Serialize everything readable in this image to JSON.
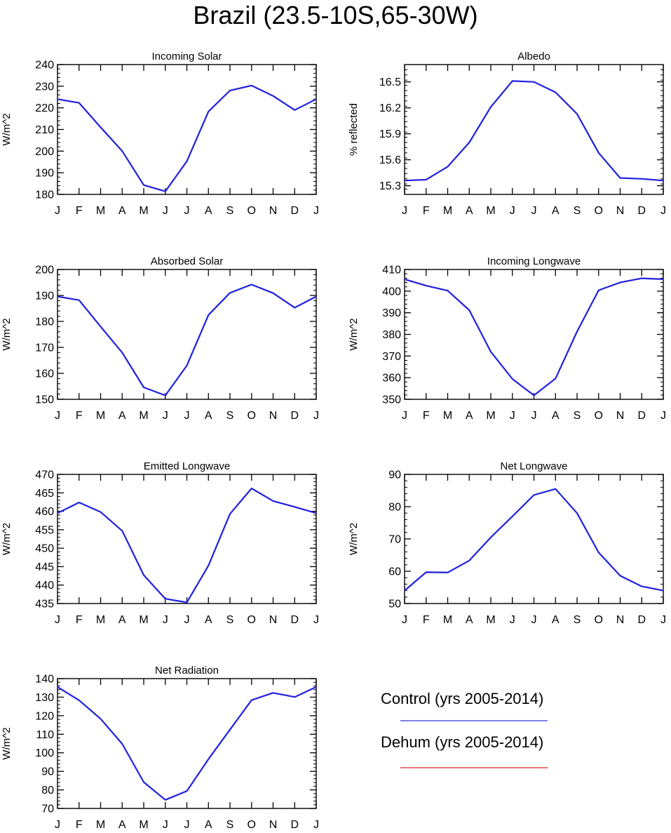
{
  "title": "Brazil (23.5-10S,65-30W)",
  "colors": {
    "control": "#2020e0",
    "dehum": "#e02020",
    "axis": "#000000"
  },
  "legend": {
    "entries": [
      {
        "label": "Control (yrs 2005-2014)",
        "color": "#3333dd"
      },
      {
        "label": "Dehum (yrs 2005-2014)",
        "color": "#dd2222"
      }
    ]
  },
  "chart_data": [
    {
      "type": "line",
      "title": "Incoming Solar",
      "ylabel": "W/m^2",
      "categories": [
        "J",
        "F",
        "M",
        "A",
        "M",
        "J",
        "J",
        "A",
        "S",
        "O",
        "N",
        "D",
        "J"
      ],
      "ylim": [
        180,
        240
      ],
      "yticks": [
        180,
        190,
        200,
        210,
        220,
        230,
        240
      ],
      "series": [
        {
          "values": [
            224,
            222.3,
            211,
            200,
            184.3,
            181.4,
            195.3,
            218.3,
            228,
            230.3,
            225.5,
            219,
            224
          ]
        }
      ]
    },
    {
      "type": "line",
      "title": "Albedo",
      "ylabel": "% reflected",
      "categories": [
        "J",
        "F",
        "M",
        "A",
        "M",
        "J",
        "J",
        "A",
        "S",
        "O",
        "N",
        "D",
        "J"
      ],
      "ylim": [
        15.2,
        16.7
      ],
      "yticks": [
        15.3,
        15.6,
        15.9,
        16.2,
        16.5
      ],
      "series": [
        {
          "values": [
            15.36,
            15.37,
            15.52,
            15.8,
            16.21,
            16.51,
            16.5,
            16.38,
            16.13,
            15.68,
            15.39,
            15.38,
            15.36
          ]
        }
      ]
    },
    {
      "type": "line",
      "title": "Absorbed Solar",
      "ylabel": "W/m^2",
      "categories": [
        "J",
        "F",
        "M",
        "A",
        "M",
        "J",
        "J",
        "A",
        "S",
        "O",
        "N",
        "D",
        "J"
      ],
      "ylim": [
        150,
        200
      ],
      "yticks": [
        150,
        160,
        170,
        180,
        190,
        200
      ],
      "series": [
        {
          "values": [
            189.6,
            188.2,
            178,
            168,
            154.6,
            151.5,
            163,
            182.5,
            191,
            194.2,
            190.9,
            185.3,
            189.6
          ]
        }
      ]
    },
    {
      "type": "line",
      "title": "Incoming Longwave",
      "ylabel": "W/m^2",
      "categories": [
        "J",
        "F",
        "M",
        "A",
        "M",
        "J",
        "J",
        "A",
        "S",
        "O",
        "N",
        "D",
        "J"
      ],
      "ylim": [
        350,
        410
      ],
      "yticks": [
        350,
        360,
        370,
        380,
        390,
        400,
        410
      ],
      "series": [
        {
          "values": [
            405.5,
            402.5,
            400.2,
            391.2,
            372,
            359.4,
            351.8,
            359.6,
            381.3,
            400.4,
            404,
            405.9,
            405.5
          ]
        }
      ]
    },
    {
      "type": "line",
      "title": "Emitted Longwave",
      "ylabel": "W/m^2",
      "categories": [
        "J",
        "F",
        "M",
        "A",
        "M",
        "J",
        "J",
        "A",
        "S",
        "O",
        "N",
        "D",
        "J"
      ],
      "ylim": [
        435,
        470
      ],
      "yticks": [
        435,
        440,
        445,
        450,
        455,
        460,
        465,
        470
      ],
      "series": [
        {
          "values": [
            459.5,
            462.4,
            459.8,
            454.7,
            442.7,
            436.3,
            435.3,
            445.3,
            459.3,
            466.2,
            462.8,
            461.2,
            459.5
          ]
        }
      ]
    },
    {
      "type": "line",
      "title": "Net Longwave",
      "ylabel": "W/m^2",
      "categories": [
        "J",
        "F",
        "M",
        "A",
        "M",
        "J",
        "J",
        "A",
        "S",
        "O",
        "N",
        "D",
        "J"
      ],
      "ylim": [
        50,
        90
      ],
      "yticks": [
        50,
        60,
        70,
        80,
        90
      ],
      "series": [
        {
          "values": [
            54,
            59.7,
            59.6,
            63.3,
            70.5,
            77,
            83.6,
            85.5,
            78,
            65.8,
            58.6,
            55.3,
            54
          ]
        }
      ]
    },
    {
      "type": "line",
      "title": "Net Radiation",
      "ylabel": "W/m^2",
      "categories": [
        "J",
        "F",
        "M",
        "A",
        "M",
        "J",
        "J",
        "A",
        "S",
        "O",
        "N",
        "D",
        "J"
      ],
      "ylim": [
        70,
        140
      ],
      "yticks": [
        70,
        80,
        90,
        100,
        110,
        120,
        130,
        140
      ],
      "series": [
        {
          "values": [
            135.5,
            128.3,
            118.3,
            104.8,
            84.2,
            74.6,
            79.4,
            96.6,
            112.5,
            128.4,
            132.3,
            130.1,
            135.5
          ]
        }
      ]
    }
  ]
}
